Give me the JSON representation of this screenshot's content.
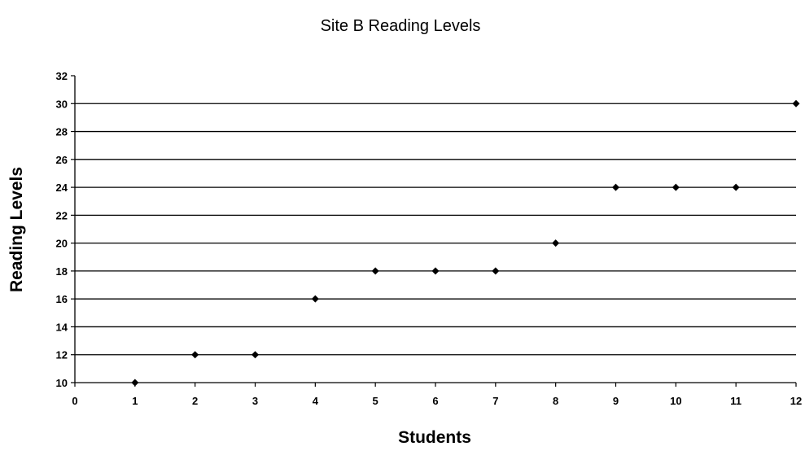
{
  "chart_data": {
    "type": "scatter",
    "title": "Site B Reading Levels",
    "xlabel": "Students",
    "ylabel": "Reading Levels",
    "xlim": [
      0,
      12
    ],
    "ylim": [
      10,
      32
    ],
    "x_ticks": [
      0,
      1,
      2,
      3,
      4,
      5,
      6,
      7,
      8,
      9,
      10,
      11,
      12
    ],
    "y_ticks": [
      10,
      12,
      14,
      16,
      18,
      20,
      22,
      24,
      26,
      28,
      30,
      32
    ],
    "grid": "horizontal",
    "marker": "diamond",
    "series": [
      {
        "x": [
          1,
          2,
          3,
          4,
          5,
          6,
          7,
          8,
          9,
          10,
          11,
          12
        ],
        "y": [
          10,
          12,
          12,
          16,
          18,
          18,
          18,
          20,
          24,
          24,
          24,
          30
        ],
        "color": "#000000"
      }
    ]
  }
}
